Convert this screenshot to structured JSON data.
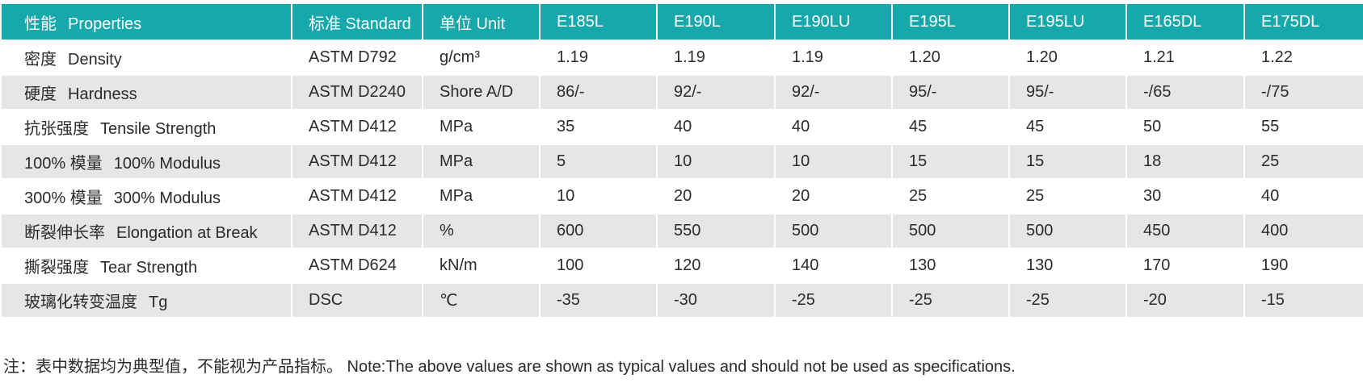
{
  "table": {
    "header": [
      {
        "zh": "性能",
        "en": "Properties"
      },
      "标准 Standard",
      "单位 Unit",
      "E185L",
      "E190L",
      "E190LU",
      "E195L",
      "E195LU",
      "E165DL",
      "E175DL"
    ],
    "rows": [
      [
        {
          "zh": "密度",
          "en": "Density"
        },
        "ASTM D792",
        "g/cm³",
        "1.19",
        "1.19",
        "1.19",
        "1.20",
        "1.20",
        "1.21",
        "1.22"
      ],
      [
        {
          "zh": "硬度",
          "en": "Hardness"
        },
        "ASTM D2240",
        "Shore A/D",
        "86/-",
        "92/-",
        "92/-",
        "95/-",
        "95/-",
        "-/65",
        "-/75"
      ],
      [
        {
          "zh": "抗张强度",
          "en": "Tensile Strength"
        },
        "ASTM D412",
        "MPa",
        "35",
        "40",
        "40",
        "45",
        "45",
        "50",
        "55"
      ],
      [
        {
          "zh": "100% 模量",
          "en": "100% Modulus"
        },
        "ASTM D412",
        "MPa",
        "5",
        "10",
        "10",
        "15",
        "15",
        "18",
        "25"
      ],
      [
        {
          "zh": "300% 模量",
          "en": "300% Modulus"
        },
        "ASTM D412",
        "MPa",
        "10",
        "20",
        "20",
        "25",
        "25",
        "30",
        "40"
      ],
      [
        {
          "zh": "断裂伸长率",
          "en": "Elongation at Break"
        },
        "ASTM D412",
        "%",
        "600",
        "550",
        "500",
        "500",
        "500",
        "450",
        "400"
      ],
      [
        {
          "zh": "撕裂强度",
          "en": "Tear Strength"
        },
        "ASTM D624",
        "kN/m",
        "100",
        "120",
        "140",
        "130",
        "130",
        "170",
        "190"
      ],
      [
        {
          "zh": "玻璃化转变温度",
          "en": "Tg"
        },
        "DSC",
        "℃",
        "-35",
        "-30",
        "-25",
        "-25",
        "-25",
        "-20",
        "-15"
      ]
    ]
  },
  "note": "注：表中数据均为典型值，不能视为产品指标。 Note:The above values are shown as typical values and should not be used as specifications."
}
